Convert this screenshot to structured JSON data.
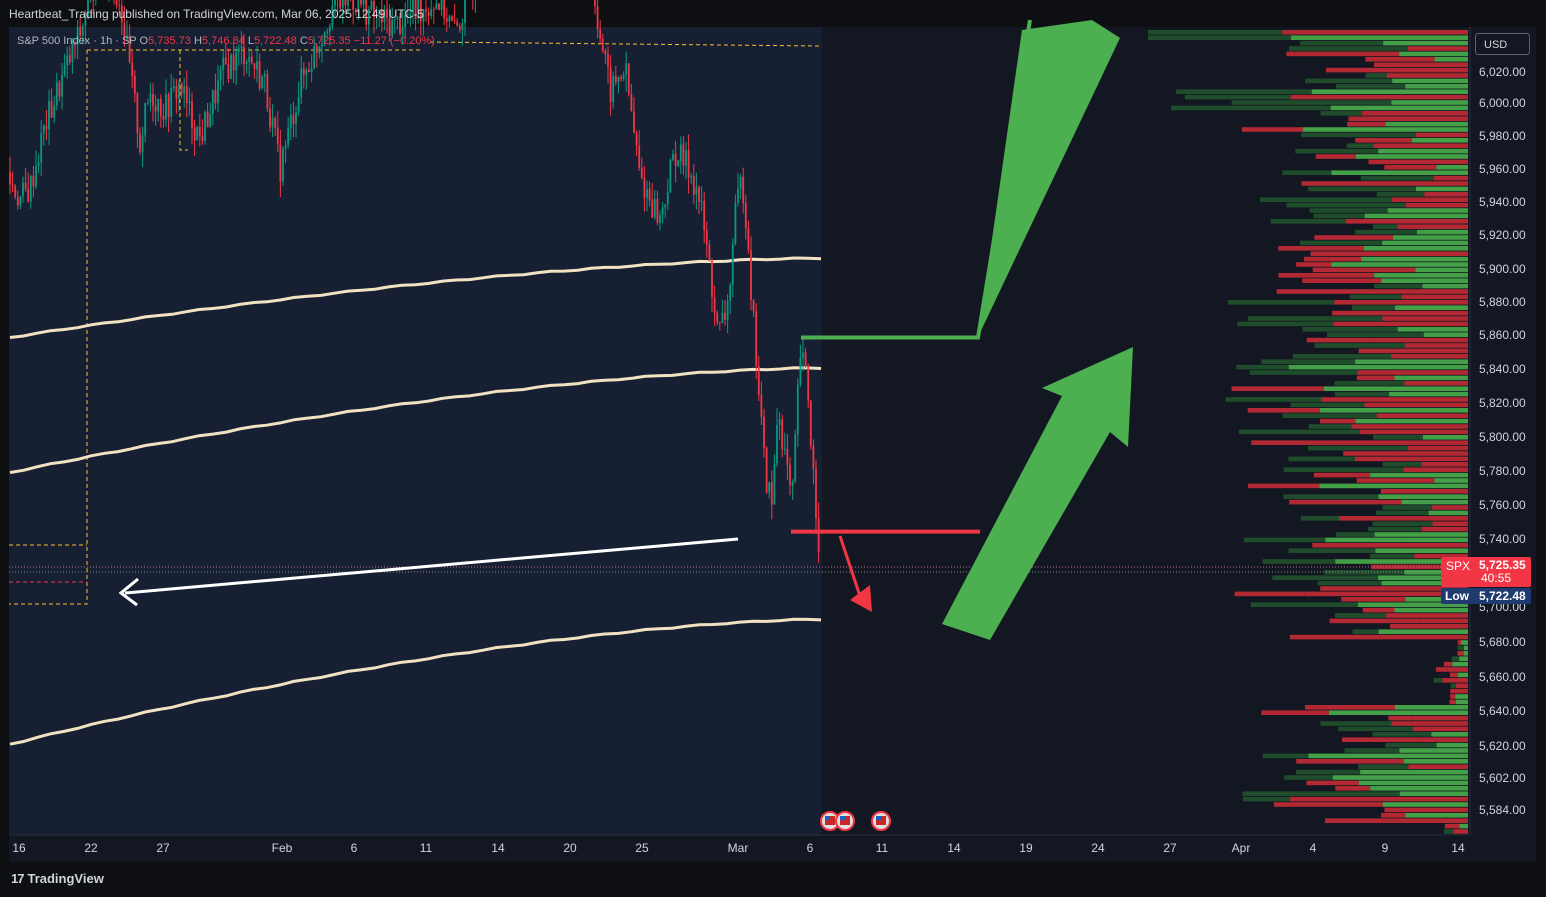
{
  "header": {
    "published_by": "Heartbeat_Trading published on TradingView.com, Mar 06, 2025 12:49 UTC-5"
  },
  "legend": {
    "symbol": "S&P 500 Index · 1h · SP",
    "o_label": "O",
    "o_value": "5,735.73",
    "h_label": "H",
    "h_value": "5,746.84",
    "l_label": "L",
    "l_value": "5,722.48",
    "c_label": "C",
    "c_value": "5,725.35",
    "change": "−11.27 (−0.20%)"
  },
  "currency_button": {
    "label": "USD"
  },
  "price_tags": {
    "spx_label": "SPX",
    "spx_price": "5,725.35",
    "spx_timer": "40:55",
    "low_label": "Low",
    "low_price": "5,722.48"
  },
  "footer": {
    "brand": "TradingView"
  },
  "colors": {
    "bg": "#0e0f13",
    "chart_bg": "#131722",
    "up": "#089981",
    "down": "#f23645",
    "envelope": "#f1e3c1",
    "arrow_green": "#4caf50",
    "arrow_red": "#f23645",
    "vp_up": "#2e7d32",
    "vp_down": "#b22833",
    "dashed": "#fbc02d"
  },
  "chart_data": {
    "type": "candlestick",
    "y_axis": {
      "ticks": [
        "6,020.00",
        "6,000.00",
        "5,980.00",
        "5,960.00",
        "5,940.00",
        "5,920.00",
        "5,900.00",
        "5,880.00",
        "5,860.00",
        "5,840.00",
        "5,820.00",
        "5,800.00",
        "5,780.00",
        "5,760.00",
        "5,740.00",
        "5,700.00",
        "5,680.00",
        "5,660.00",
        "5,640.00",
        "5,620.00",
        "5,602.00",
        "5,584.00"
      ],
      "tick_values": [
        6020,
        6000,
        5980,
        5960,
        5940,
        5920,
        5900,
        5880,
        5860,
        5840,
        5820,
        5800,
        5780,
        5760,
        5740,
        5700,
        5680,
        5660,
        5640,
        5620,
        5602,
        5584
      ]
    },
    "x_axis": {
      "ticks": [
        "16",
        "22",
        "27",
        "Feb",
        "6",
        "11",
        "14",
        "20",
        "25",
        "Mar",
        "6",
        "11",
        "14",
        "19",
        "24",
        "27",
        "Apr",
        "4",
        "9",
        "14"
      ]
    },
    "levels": {
      "resistance": 5860,
      "support": 5742,
      "last": 5725.35,
      "low": 5722.48
    },
    "envelope": {
      "upper": {
        "start": 5860,
        "end": 5907
      },
      "middle": {
        "start": 5780,
        "end": 5842
      },
      "lower": {
        "start": 5619,
        "end": 5693
      }
    },
    "price_path": [
      [
        0,
        5958
      ],
      [
        10,
        5952
      ],
      [
        20,
        5942
      ],
      [
        30,
        5948
      ],
      [
        45,
        5985
      ],
      [
        60,
        6010
      ],
      [
        80,
        6040
      ],
      [
        100,
        6080
      ],
      [
        120,
        6060
      ],
      [
        140,
        5975
      ],
      [
        150,
        6005
      ],
      [
        165,
        5995
      ],
      [
        180,
        6010
      ],
      [
        190,
        5992
      ],
      [
        200,
        5978
      ],
      [
        210,
        5995
      ],
      [
        225,
        6020
      ],
      [
        245,
        6030
      ],
      [
        265,
        6010
      ],
      [
        280,
        5960
      ],
      [
        290,
        5985
      ],
      [
        300,
        6010
      ],
      [
        315,
        6030
      ],
      [
        335,
        6060
      ],
      [
        355,
        6060
      ],
      [
        375,
        6050
      ],
      [
        395,
        6045
      ],
      [
        420,
        6055
      ],
      [
        440,
        6060
      ],
      [
        455,
        6040
      ],
      [
        480,
        6080
      ],
      [
        520,
        6100
      ],
      [
        560,
        6090
      ],
      [
        590,
        6080
      ],
      [
        600,
        6040
      ],
      [
        610,
        6005
      ],
      [
        625,
        6020
      ],
      [
        640,
        5955
      ],
      [
        660,
        5930
      ],
      [
        675,
        5970
      ],
      [
        690,
        5960
      ],
      [
        700,
        5940
      ],
      [
        705,
        5920
      ],
      [
        712,
        5890
      ],
      [
        718,
        5860
      ],
      [
        728,
        5880
      ],
      [
        735,
        5930
      ],
      [
        742,
        5955
      ],
      [
        748,
        5920
      ],
      [
        752,
        5880
      ],
      [
        758,
        5835
      ],
      [
        765,
        5780
      ],
      [
        772,
        5760
      ],
      [
        778,
        5820
      ],
      [
        785,
        5790
      ],
      [
        792,
        5760
      ],
      [
        800,
        5850
      ],
      [
        807,
        5835
      ],
      [
        812,
        5790
      ],
      [
        818,
        5745
      ],
      [
        822,
        5725
      ]
    ]
  }
}
